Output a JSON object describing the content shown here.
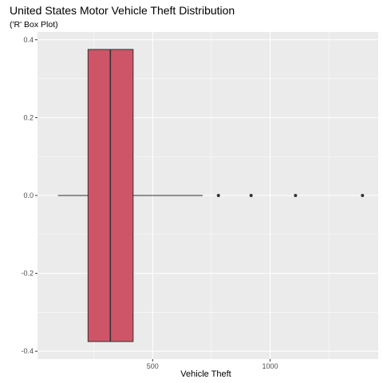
{
  "chart_data": {
    "type": "boxplot",
    "title": "United States Motor Vehicle Theft Distribution",
    "subtitle": "('R' Box Plot)",
    "xlabel": "Vehicle Theft",
    "ylabel": "",
    "orientation": "horizontal",
    "xlim": [
      10,
      1460
    ],
    "ylim": [
      -0.42,
      0.42
    ],
    "x_ticks": [
      500,
      1000
    ],
    "x_minor_ticks": [
      250,
      750,
      1250
    ],
    "y_ticks": [
      -0.4,
      -0.2,
      0.0,
      0.2,
      0.4
    ],
    "y_tick_labels": [
      "-0.4",
      "-0.2",
      "0.0",
      "0.2",
      "0.4"
    ],
    "y_minor_ticks": [
      -0.3,
      -0.1,
      0.1,
      0.3
    ],
    "box": {
      "y_center": 0.0,
      "y_half_width": 0.375,
      "whisker_low": 97,
      "q1": 225,
      "median": 320,
      "q3": 417,
      "whisker_high": 713,
      "outliers": [
        780,
        919,
        1108,
        1393
      ]
    },
    "grid": true,
    "legend": "none",
    "colors": {
      "panel": "#ebebeb",
      "grid": "#ffffff",
      "box_fill": "#cd5567",
      "box_stroke": "#333333",
      "line": "#333333",
      "outlier": "#333333"
    }
  }
}
